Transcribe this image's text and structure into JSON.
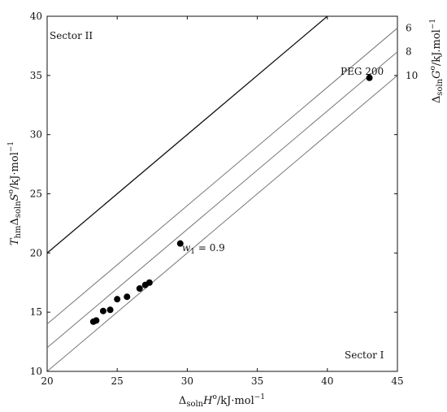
{
  "chart_data": {
    "type": "scatter",
    "xlim": [
      20,
      45
    ],
    "ylim": [
      10,
      40
    ],
    "x_ticks": [
      20,
      25,
      30,
      35,
      40,
      45
    ],
    "y_ticks": [
      10,
      15,
      20,
      25,
      30,
      35,
      40
    ],
    "grid": false,
    "xlabel": {
      "prefix": "Δ",
      "sub": "soln",
      "main": "H",
      "sup": "o",
      "unit": "/kJ·mol",
      "unit_sup": "−1"
    },
    "ylabel": {
      "lead": "T",
      "lead_sub": "hm",
      "prefix": "Δ",
      "sub": "soln",
      "main": "S",
      "sup": "o",
      "unit": "/kJ·mol",
      "unit_sup": "−1"
    },
    "right_label": {
      "prefix": "Δ",
      "sub": "soln",
      "main": "G",
      "sup": "o",
      "unit": "/kJ.mol",
      "unit_sup": "−1"
    },
    "points": [
      {
        "x": 23.3,
        "y": 14.2
      },
      {
        "x": 23.5,
        "y": 14.3
      },
      {
        "x": 24.0,
        "y": 15.1
      },
      {
        "x": 24.5,
        "y": 15.2
      },
      {
        "x": 25.0,
        "y": 16.1
      },
      {
        "x": 25.7,
        "y": 16.3
      },
      {
        "x": 26.6,
        "y": 17.0
      },
      {
        "x": 27.0,
        "y": 17.3
      },
      {
        "x": 27.3,
        "y": 17.5
      },
      {
        "x": 29.5,
        "y": 20.8
      },
      {
        "x": 43.0,
        "y": 34.8
      }
    ],
    "lines": [
      {
        "name": "0",
        "offset": 0,
        "style": "bold"
      },
      {
        "name": "6",
        "offset": 6,
        "style": "thin",
        "label": "6"
      },
      {
        "name": "8",
        "offset": 8,
        "style": "thin",
        "label": "8"
      },
      {
        "name": "10",
        "offset": 10,
        "style": "thin",
        "label": "10"
      }
    ],
    "annotations": {
      "peg": "PEG 200",
      "w1_var": "w",
      "w1_sub": "1",
      "w1_value": " = 0.9",
      "sector1": "Sector I",
      "sector2": "Sector II"
    }
  }
}
